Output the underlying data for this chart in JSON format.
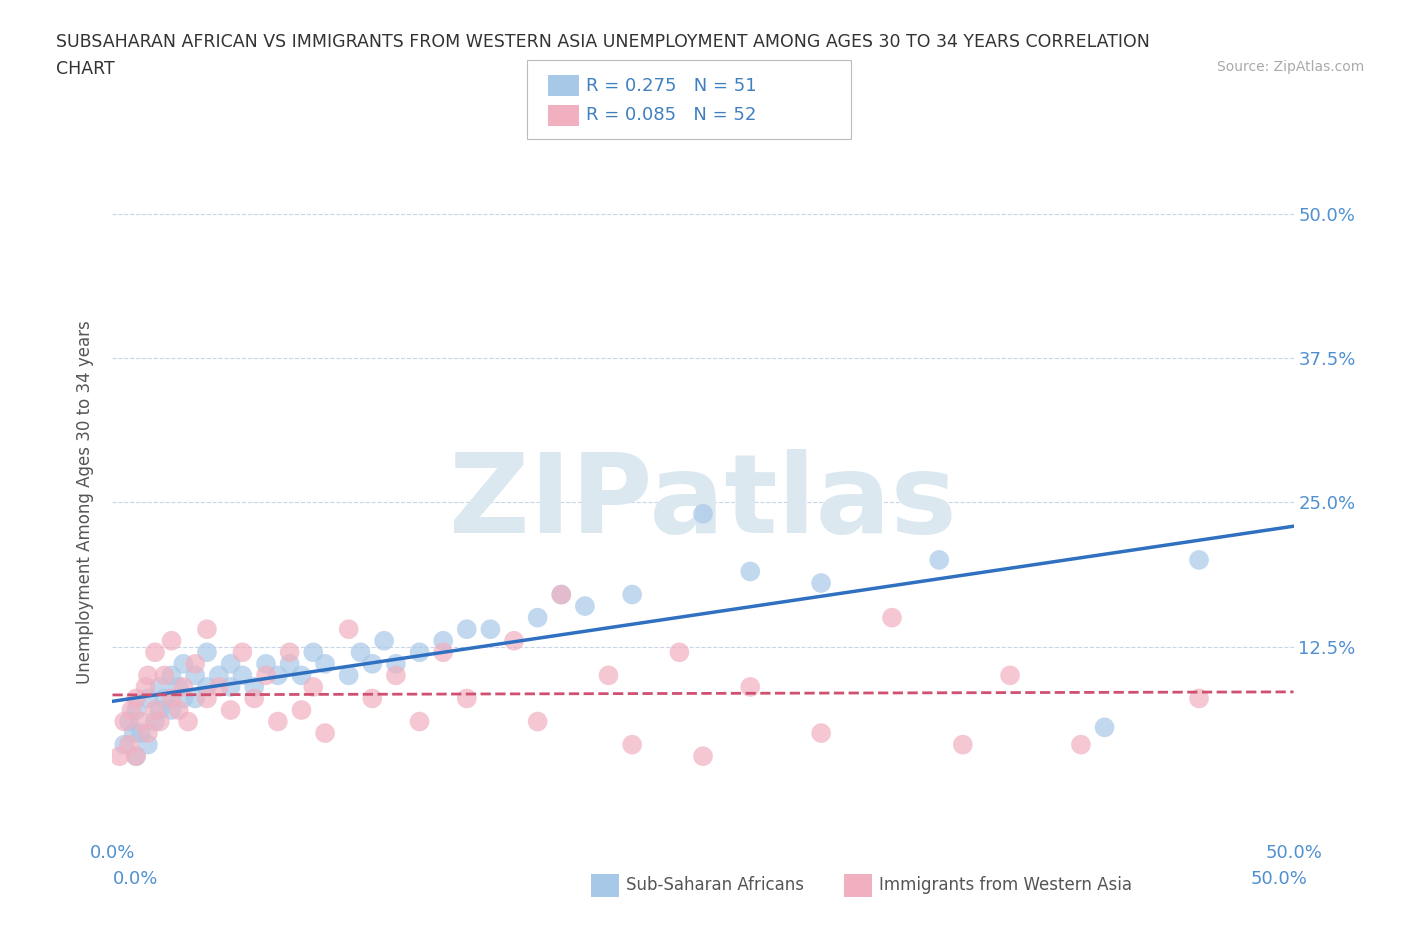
{
  "title_line1": "SUBSAHARAN AFRICAN VS IMMIGRANTS FROM WESTERN ASIA UNEMPLOYMENT AMONG AGES 30 TO 34 YEARS CORRELATION",
  "title_line2": "CHART",
  "source": "Source: ZipAtlas.com",
  "ylabel": "Unemployment Among Ages 30 to 34 years",
  "xlim": [
    0.0,
    0.5
  ],
  "ylim": [
    -0.04,
    0.54
  ],
  "xticks": [
    0.0,
    0.125,
    0.25,
    0.375,
    0.5
  ],
  "yticks": [
    0.0,
    0.125,
    0.25,
    0.375,
    0.5
  ],
  "xtick_labels_show": [
    "0.0%",
    "",
    "",
    "",
    "50.0%"
  ],
  "ytick_labels_show": [
    "",
    "12.5%",
    "25.0%",
    "37.5%",
    "50.0%"
  ],
  "blue_color": "#a8c8e8",
  "pink_color": "#f0b0c0",
  "blue_line_color": "#3070c0",
  "pink_line_color": "#d05070",
  "pink_line_dash": true,
  "R_blue": 0.275,
  "N_blue": 51,
  "R_pink": 0.085,
  "N_pink": 52,
  "grid_color": "#c8d4e8",
  "watermark_text": "ZIPatlas",
  "watermark_color": "#dce8f0",
  "legend_label_blue": "Sub-Saharan Africans",
  "legend_label_pink": "Immigrants from Western Asia",
  "blue_scatter": [
    [
      0.005,
      0.04
    ],
    [
      0.007,
      0.06
    ],
    [
      0.009,
      0.05
    ],
    [
      0.01,
      0.03
    ],
    [
      0.01,
      0.07
    ],
    [
      0.012,
      0.05
    ],
    [
      0.015,
      0.04
    ],
    [
      0.015,
      0.08
    ],
    [
      0.018,
      0.06
    ],
    [
      0.02,
      0.07
    ],
    [
      0.02,
      0.09
    ],
    [
      0.022,
      0.08
    ],
    [
      0.025,
      0.07
    ],
    [
      0.025,
      0.1
    ],
    [
      0.028,
      0.09
    ],
    [
      0.03,
      0.08
    ],
    [
      0.03,
      0.11
    ],
    [
      0.035,
      0.08
    ],
    [
      0.035,
      0.1
    ],
    [
      0.04,
      0.09
    ],
    [
      0.04,
      0.12
    ],
    [
      0.045,
      0.1
    ],
    [
      0.05,
      0.09
    ],
    [
      0.05,
      0.11
    ],
    [
      0.055,
      0.1
    ],
    [
      0.06,
      0.09
    ],
    [
      0.065,
      0.11
    ],
    [
      0.07,
      0.1
    ],
    [
      0.075,
      0.11
    ],
    [
      0.08,
      0.1
    ],
    [
      0.085,
      0.12
    ],
    [
      0.09,
      0.11
    ],
    [
      0.1,
      0.1
    ],
    [
      0.105,
      0.12
    ],
    [
      0.11,
      0.11
    ],
    [
      0.115,
      0.13
    ],
    [
      0.12,
      0.11
    ],
    [
      0.13,
      0.12
    ],
    [
      0.14,
      0.13
    ],
    [
      0.15,
      0.14
    ],
    [
      0.16,
      0.14
    ],
    [
      0.18,
      0.15
    ],
    [
      0.19,
      0.17
    ],
    [
      0.2,
      0.16
    ],
    [
      0.22,
      0.17
    ],
    [
      0.25,
      0.24
    ],
    [
      0.27,
      0.19
    ],
    [
      0.3,
      0.18
    ],
    [
      0.35,
      0.2
    ],
    [
      0.42,
      0.055
    ],
    [
      0.46,
      0.2
    ]
  ],
  "pink_scatter": [
    [
      0.003,
      0.03
    ],
    [
      0.005,
      0.06
    ],
    [
      0.007,
      0.04
    ],
    [
      0.008,
      0.07
    ],
    [
      0.01,
      0.03
    ],
    [
      0.01,
      0.08
    ],
    [
      0.012,
      0.06
    ],
    [
      0.014,
      0.09
    ],
    [
      0.015,
      0.05
    ],
    [
      0.015,
      0.1
    ],
    [
      0.018,
      0.07
    ],
    [
      0.018,
      0.12
    ],
    [
      0.02,
      0.06
    ],
    [
      0.022,
      0.1
    ],
    [
      0.025,
      0.08
    ],
    [
      0.025,
      0.13
    ],
    [
      0.028,
      0.07
    ],
    [
      0.03,
      0.09
    ],
    [
      0.032,
      0.06
    ],
    [
      0.035,
      0.11
    ],
    [
      0.04,
      0.08
    ],
    [
      0.04,
      0.14
    ],
    [
      0.045,
      0.09
    ],
    [
      0.05,
      0.07
    ],
    [
      0.055,
      0.12
    ],
    [
      0.06,
      0.08
    ],
    [
      0.065,
      0.1
    ],
    [
      0.07,
      0.06
    ],
    [
      0.075,
      0.12
    ],
    [
      0.08,
      0.07
    ],
    [
      0.085,
      0.09
    ],
    [
      0.09,
      0.05
    ],
    [
      0.1,
      0.14
    ],
    [
      0.11,
      0.08
    ],
    [
      0.12,
      0.1
    ],
    [
      0.13,
      0.06
    ],
    [
      0.14,
      0.12
    ],
    [
      0.15,
      0.08
    ],
    [
      0.17,
      0.13
    ],
    [
      0.18,
      0.06
    ],
    [
      0.19,
      0.17
    ],
    [
      0.21,
      0.1
    ],
    [
      0.22,
      0.04
    ],
    [
      0.24,
      0.12
    ],
    [
      0.25,
      0.03
    ],
    [
      0.27,
      0.09
    ],
    [
      0.3,
      0.05
    ],
    [
      0.33,
      0.15
    ],
    [
      0.36,
      0.04
    ],
    [
      0.38,
      0.1
    ],
    [
      0.41,
      0.04
    ],
    [
      0.46,
      0.08
    ]
  ]
}
